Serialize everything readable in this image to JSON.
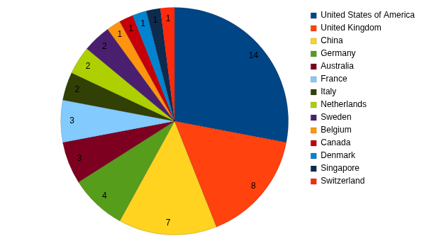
{
  "chart_data": {
    "type": "pie",
    "categories": [
      "United States of America",
      "United Kingdom",
      "China",
      "Germany",
      "Australia",
      "France",
      "Italy",
      "Netherlands",
      "Sweden",
      "Belgium",
      "Canada",
      "Denmark",
      "Singapore",
      "Switzerland"
    ],
    "values": [
      14,
      8,
      7,
      4,
      3,
      3,
      2,
      2,
      2,
      1,
      1,
      1,
      1,
      1
    ],
    "colors": [
      "#004586",
      "#ff420e",
      "#ffd320",
      "#579d1c",
      "#7e0021",
      "#83caff",
      "#314004",
      "#aecf00",
      "#4b1f6f",
      "#ff950e",
      "#c5000b",
      "#0084d1",
      "#0d2b4f",
      "#ff2a0e"
    ],
    "data_labels": true,
    "legend": "right"
  }
}
